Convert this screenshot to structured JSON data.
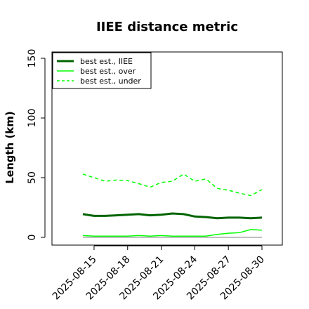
{
  "chart_data": {
    "type": "line",
    "title": "IIEE distance metric",
    "ylabel": "Length (km)",
    "xlabel": "",
    "x": [
      "2025-08-14",
      "2025-08-15",
      "2025-08-16",
      "2025-08-17",
      "2025-08-18",
      "2025-08-19",
      "2025-08-20",
      "2025-08-21",
      "2025-08-22",
      "2025-08-23",
      "2025-08-24",
      "2025-08-25",
      "2025-08-26",
      "2025-08-27",
      "2025-08-28",
      "2025-08-29",
      "2025-08-30"
    ],
    "x_ticks": [
      "2025-08-15",
      "2025-08-18",
      "2025-08-21",
      "2025-08-24",
      "2025-08-27",
      "2025-08-30"
    ],
    "ylim": [
      0,
      160
    ],
    "y_ticks": [
      0,
      50,
      100,
      150
    ],
    "legend_position": "top-left",
    "series": [
      {
        "name": "best est., IIEE",
        "color": "#006400",
        "style": "solid-thick",
        "values": [
          19.5,
          18,
          18,
          18.5,
          19,
          19.5,
          18.5,
          19,
          20,
          19.5,
          17.5,
          17,
          16,
          16.5,
          16.5,
          16,
          16.5
        ]
      },
      {
        "name": "best est., over",
        "color": "#00ff00",
        "style": "solid",
        "values": [
          1.5,
          1,
          1,
          1,
          1,
          1.5,
          1,
          1.5,
          1,
          1,
          1,
          1,
          2.5,
          3.5,
          4,
          6.5,
          6
        ]
      },
      {
        "name": "best est., under",
        "color": "#00ff00",
        "style": "dashed",
        "values": [
          53,
          50,
          47,
          48,
          47.5,
          45,
          42,
          46,
          47,
          53,
          47,
          49,
          41,
          39.5,
          37,
          35,
          40
        ]
      },
      {
        "name": "",
        "color": "#808080",
        "style": "baseline",
        "values": [
          0,
          0,
          0,
          0,
          0,
          0,
          0,
          0,
          0,
          0,
          0,
          0,
          0,
          0,
          0,
          0,
          0
        ]
      }
    ]
  }
}
